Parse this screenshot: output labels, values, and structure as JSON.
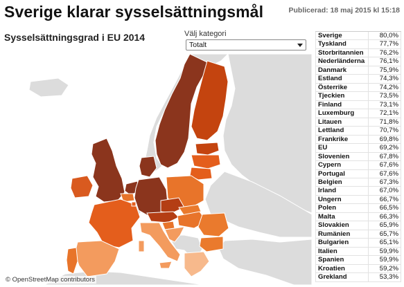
{
  "header": {
    "title": "Sverige klarar sysselsättningsmål",
    "published": "Publicerad: 18 maj 2015 kl 15:18"
  },
  "chart": {
    "subtitle": "Sysselsättningsgrad i EU 2014",
    "category_label": "Välj kategori",
    "category_selected": "Totalt"
  },
  "map": {
    "attribution": "© OpenStreetMap contributors",
    "colors": {
      "sea": "#ffffff",
      "non_eu_land": "#dcdcdc",
      "border": "#ffffff"
    }
  },
  "chart_data": {
    "type": "table",
    "title": "Sysselsättningsgrad i EU 2014",
    "rows": [
      {
        "country": "Sverige",
        "value": "80,0%"
      },
      {
        "country": "Tyskland",
        "value": "77,7%"
      },
      {
        "country": "Storbritannien",
        "value": "76,2%"
      },
      {
        "country": "Nederländerna",
        "value": "76,1%"
      },
      {
        "country": "Danmark",
        "value": "75,9%"
      },
      {
        "country": "Estland",
        "value": "74,3%"
      },
      {
        "country": "Österrike",
        "value": "74,2%"
      },
      {
        "country": "Tjeckien",
        "value": "73,5%"
      },
      {
        "country": "Finland",
        "value": "73,1%"
      },
      {
        "country": "Luxemburg",
        "value": "72,1%"
      },
      {
        "country": "Litauen",
        "value": "71,8%"
      },
      {
        "country": "Lettland",
        "value": "70,7%"
      },
      {
        "country": "Frankrike",
        "value": "69,8%"
      },
      {
        "country": "EU",
        "value": "69,2%"
      },
      {
        "country": "Slovenien",
        "value": "67,8%"
      },
      {
        "country": "Cypern",
        "value": "67,6%"
      },
      {
        "country": "Portugal",
        "value": "67,6%"
      },
      {
        "country": "Belgien",
        "value": "67,3%"
      },
      {
        "country": "Irland",
        "value": "67,0%"
      },
      {
        "country": "Ungern",
        "value": "66,7%"
      },
      {
        "country": "Polen",
        "value": "66,5%"
      },
      {
        "country": "Malta",
        "value": "66,3%"
      },
      {
        "country": "Slovakien",
        "value": "65,9%"
      },
      {
        "country": "Rumänien",
        "value": "65,7%"
      },
      {
        "country": "Bulgarien",
        "value": "65,1%"
      },
      {
        "country": "Italien",
        "value": "59,9%"
      },
      {
        "country": "Spanien",
        "value": "59,9%"
      },
      {
        "country": "Kroatien",
        "value": "59,2%"
      },
      {
        "country": "Grekland",
        "value": "53,3%"
      }
    ]
  }
}
